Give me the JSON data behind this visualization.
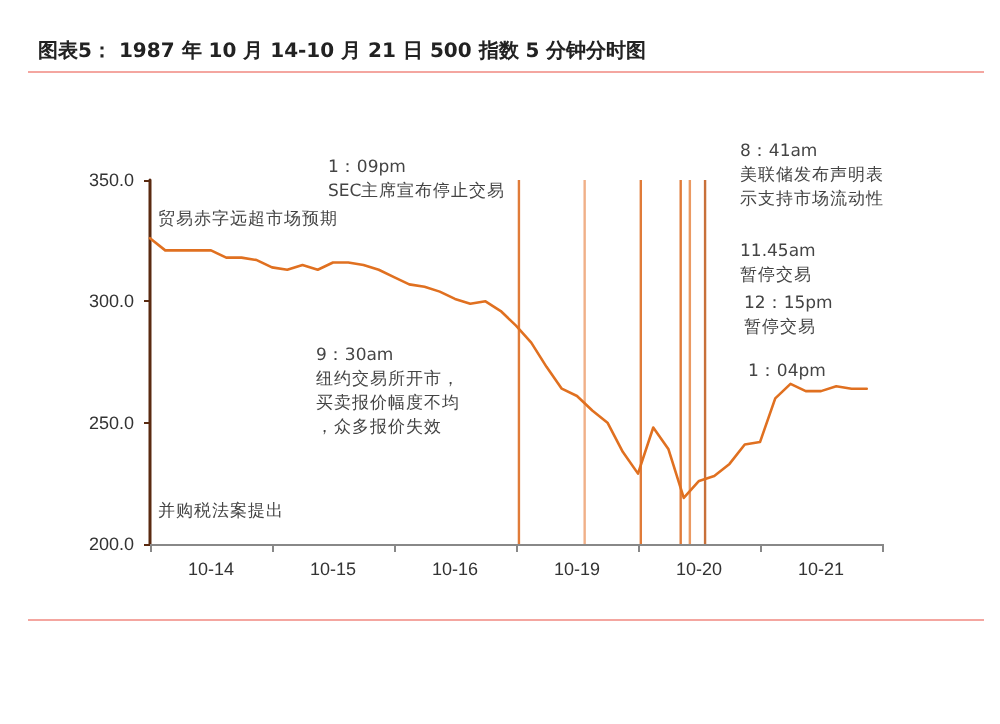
{
  "chart_data": {
    "type": "line",
    "title": "图表5： 1987 年 10 月 14-10 月 21 日 500 指数 5 分钟分时图",
    "categories": [
      null,
      null,
      null,
      null,
      "10-14",
      null,
      null,
      null,
      null,
      null,
      null,
      null,
      "10-15",
      null,
      null,
      null,
      null,
      null,
      null,
      null,
      "10-16",
      null,
      null,
      null,
      null,
      null,
      null,
      null,
      "10-19",
      null,
      null,
      null,
      null,
      null,
      null,
      null,
      "10-20",
      null,
      null,
      null,
      null,
      null,
      null,
      null,
      "10-21",
      null,
      null,
      null,
      null
    ],
    "series": [
      {
        "color": "#e07020",
        "values": [
          326,
          321,
          321,
          321,
          321,
          318,
          318,
          317,
          314,
          313,
          315,
          313,
          316,
          316,
          315,
          313,
          310,
          307,
          306,
          304,
          301,
          299,
          300,
          296,
          290,
          283,
          273,
          264,
          261,
          255,
          250,
          238,
          229,
          248,
          239,
          219,
          226,
          228,
          233,
          241,
          242,
          260,
          266,
          263,
          263,
          265,
          264,
          264,
          null
        ]
      }
    ],
    "ylim": [
      200,
      350
    ],
    "yticks": [
      {
        "value": 200,
        "label": "200.0"
      },
      {
        "value": 250,
        "label": "250.0"
      },
      {
        "value": 300,
        "label": "300.0"
      },
      {
        "value": 350,
        "label": "350.0"
      }
    ],
    "marker": "none",
    "line_style": "solid",
    "annotations": [
      "贸易赤字远超市场预期",
      "并购税法案提出",
      "1：09pm\nSEC主席宣布停止交易",
      "9：30am\n纽约交易所开市，买卖报价幅度不均，众多报价失效",
      "8：41am\n美联储发布声明表示支持市场流动性",
      "11.45am\n暂停交易",
      "12：15pm\n暂停交易",
      "1：04pm"
    ]
  }
}
